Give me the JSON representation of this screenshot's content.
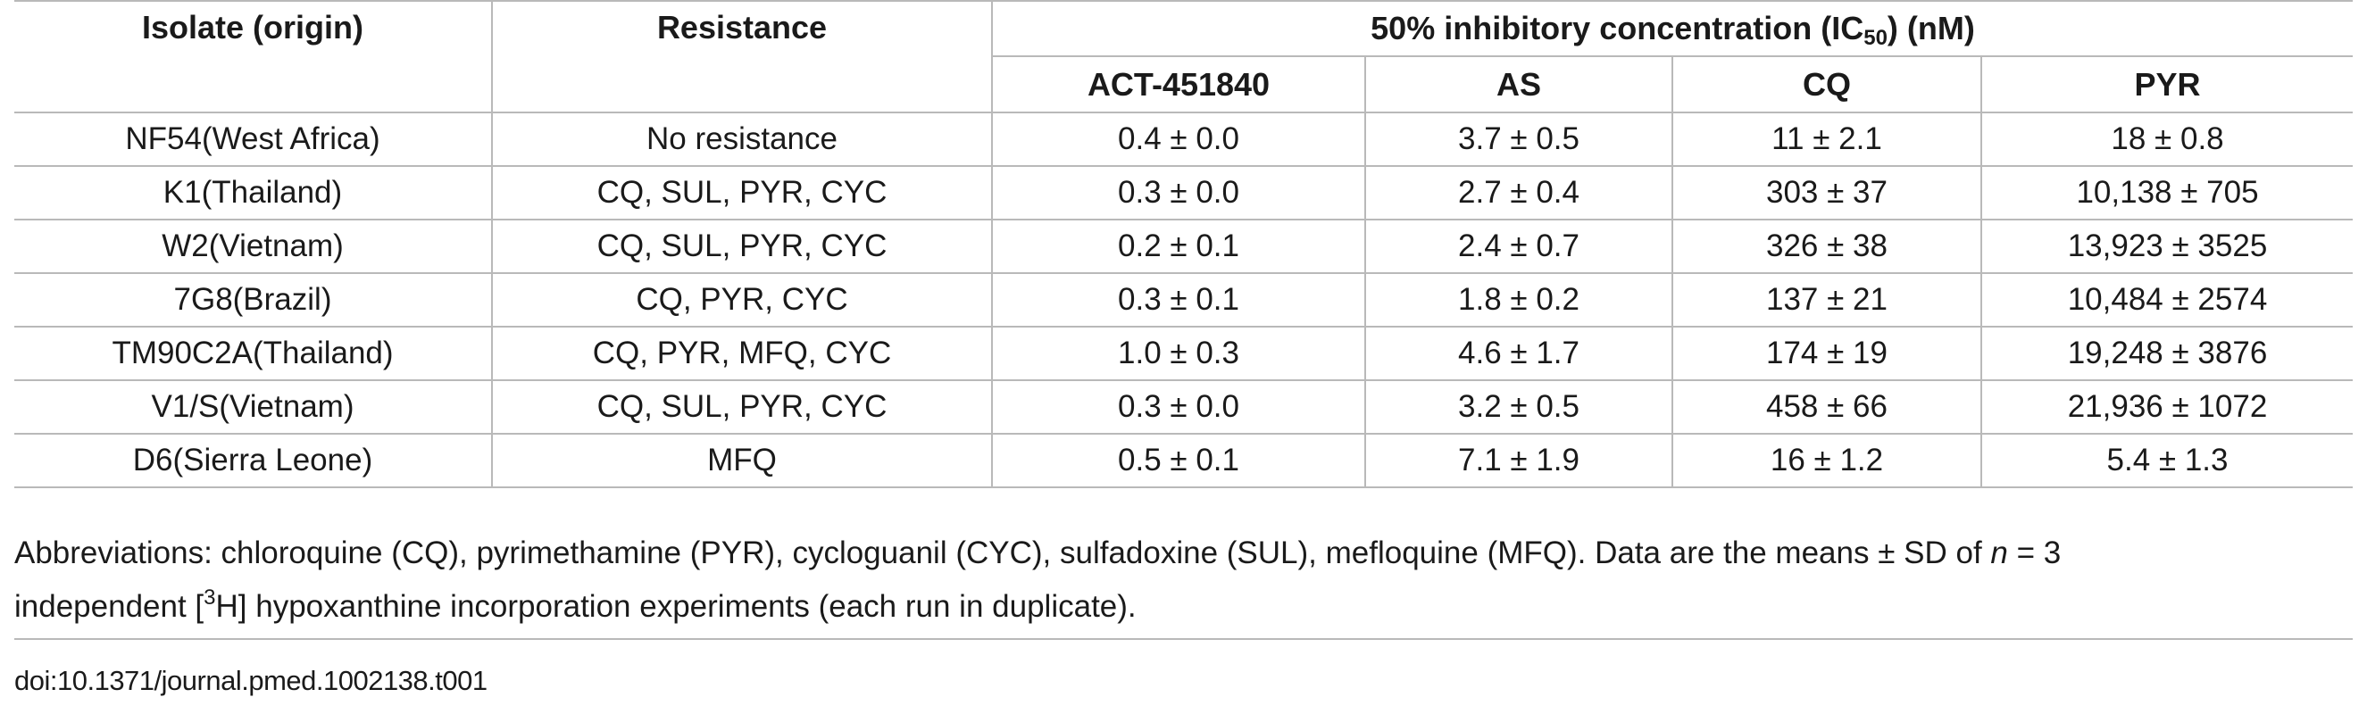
{
  "table": {
    "header": {
      "isolate": "Isolate (origin)",
      "resistance": "Resistance",
      "group_prefix": "50% inhibitory concentration (IC",
      "group_sub": "50",
      "group_suffix": ") (nM)",
      "drugs": [
        "ACT-451840",
        "AS",
        "CQ",
        "PYR"
      ]
    },
    "rows": [
      {
        "isolate": "NF54(West Africa)",
        "resistance": "No resistance",
        "act": "0.4 ± 0.0",
        "as": "3.7 ± 0.5",
        "cq": "11 ± 2.1",
        "pyr": "18 ± 0.8"
      },
      {
        "isolate": "K1(Thailand)",
        "resistance": "CQ, SUL, PYR, CYC",
        "act": "0.3 ± 0.0",
        "as": "2.7 ± 0.4",
        "cq": "303 ± 37",
        "pyr": "10,138 ± 705"
      },
      {
        "isolate": "W2(Vietnam)",
        "resistance": "CQ, SUL, PYR, CYC",
        "act": "0.2 ± 0.1",
        "as": "2.4 ± 0.7",
        "cq": "326 ± 38",
        "pyr": "13,923 ± 3525"
      },
      {
        "isolate": "7G8(Brazil)",
        "resistance": "CQ, PYR, CYC",
        "act": "0.3 ± 0.1",
        "as": "1.8 ± 0.2",
        "cq": "137 ± 21",
        "pyr": "10,484 ± 2574"
      },
      {
        "isolate": "TM90C2A(Thailand)",
        "resistance": "CQ, PYR, MFQ, CYC",
        "act": "1.0 ± 0.3",
        "as": "4.6 ± 1.7",
        "cq": "174 ± 19",
        "pyr": "19,248 ± 3876"
      },
      {
        "isolate": "V1/S(Vietnam)",
        "resistance": "CQ, SUL, PYR, CYC",
        "act": "0.3 ± 0.0",
        "as": "3.2 ± 0.5",
        "cq": "458 ± 66",
        "pyr": "21,936 ± 1072"
      },
      {
        "isolate": "D6(Sierra Leone)",
        "resistance": "MFQ",
        "act": "0.5 ± 0.1",
        "as": "7.1 ± 1.9",
        "cq": "16 ± 1.2",
        "pyr": "5.4 ± 1.3"
      }
    ]
  },
  "footnote": {
    "part1": "Abbreviations: chloroquine (CQ), pyrimethamine (PYR), cycloguanil (CYC), sulfadoxine (SUL), mefloquine (MFQ). Data are the means ± SD of ",
    "n": "n",
    "part2": " = 3",
    "part3": "independent [",
    "sup": "3",
    "part4": "H] hypoxanthine incorporation experiments (each run in duplicate)."
  },
  "doi": "doi:10.1371/journal.pmed.1002138.t001"
}
